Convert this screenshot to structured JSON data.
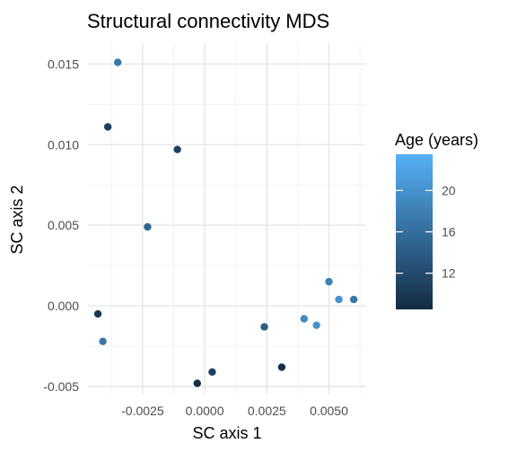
{
  "chart_data": {
    "type": "scatter",
    "title": "Structural connectivity MDS",
    "xlabel": "SC axis 1",
    "ylabel": "SC axis 2",
    "xlim": [
      -0.0047,
      0.0065
    ],
    "ylim": [
      -0.0055,
      0.0163
    ],
    "x_ticks": [
      -0.0025,
      0.0,
      0.0025,
      0.005
    ],
    "x_tick_labels": [
      "-0.0025",
      "0.0000",
      "0.0025",
      "0.0050"
    ],
    "y_ticks": [
      -0.005,
      0.0,
      0.005,
      0.01,
      0.015
    ],
    "y_tick_labels": [
      "-0.005",
      "0.000",
      "0.005",
      "0.010",
      "0.015"
    ],
    "grid": true,
    "legend": {
      "title": "Age (years)",
      "type": "colorbar",
      "position": "right",
      "ticks": [
        12,
        16,
        20
      ],
      "tick_labels": [
        "12",
        "16",
        "20"
      ],
      "range": [
        8.5,
        23.5
      ],
      "color_low": "#132b43",
      "color_high": "#56b1f7"
    },
    "points": [
      {
        "x": -0.0035,
        "y": 0.0151,
        "age": 17
      },
      {
        "x": -0.0039,
        "y": 0.0111,
        "age": 11
      },
      {
        "x": -0.0011,
        "y": 0.0097,
        "age": 11
      },
      {
        "x": -0.0023,
        "y": 0.0049,
        "age": 15
      },
      {
        "x": 0.0031,
        "y": -0.0038,
        "age": 9
      },
      {
        "x": 0.0003,
        "y": -0.0041,
        "age": 11
      },
      {
        "x": -0.0003,
        "y": -0.0048,
        "age": 9
      },
      {
        "x": 0.006,
        "y": 0.0004,
        "age": 17
      },
      {
        "x": 0.0054,
        "y": 0.0004,
        "age": 20
      },
      {
        "x": 0.005,
        "y": 0.0015,
        "age": 18
      },
      {
        "x": -0.0041,
        "y": -0.0022,
        "age": 17
      },
      {
        "x": -0.0043,
        "y": -0.0005,
        "age": 10
      },
      {
        "x": 0.0024,
        "y": -0.0013,
        "age": 14
      },
      {
        "x": 0.0045,
        "y": -0.0012,
        "age": 20
      },
      {
        "x": 0.004,
        "y": -0.0008,
        "age": 19
      }
    ]
  }
}
